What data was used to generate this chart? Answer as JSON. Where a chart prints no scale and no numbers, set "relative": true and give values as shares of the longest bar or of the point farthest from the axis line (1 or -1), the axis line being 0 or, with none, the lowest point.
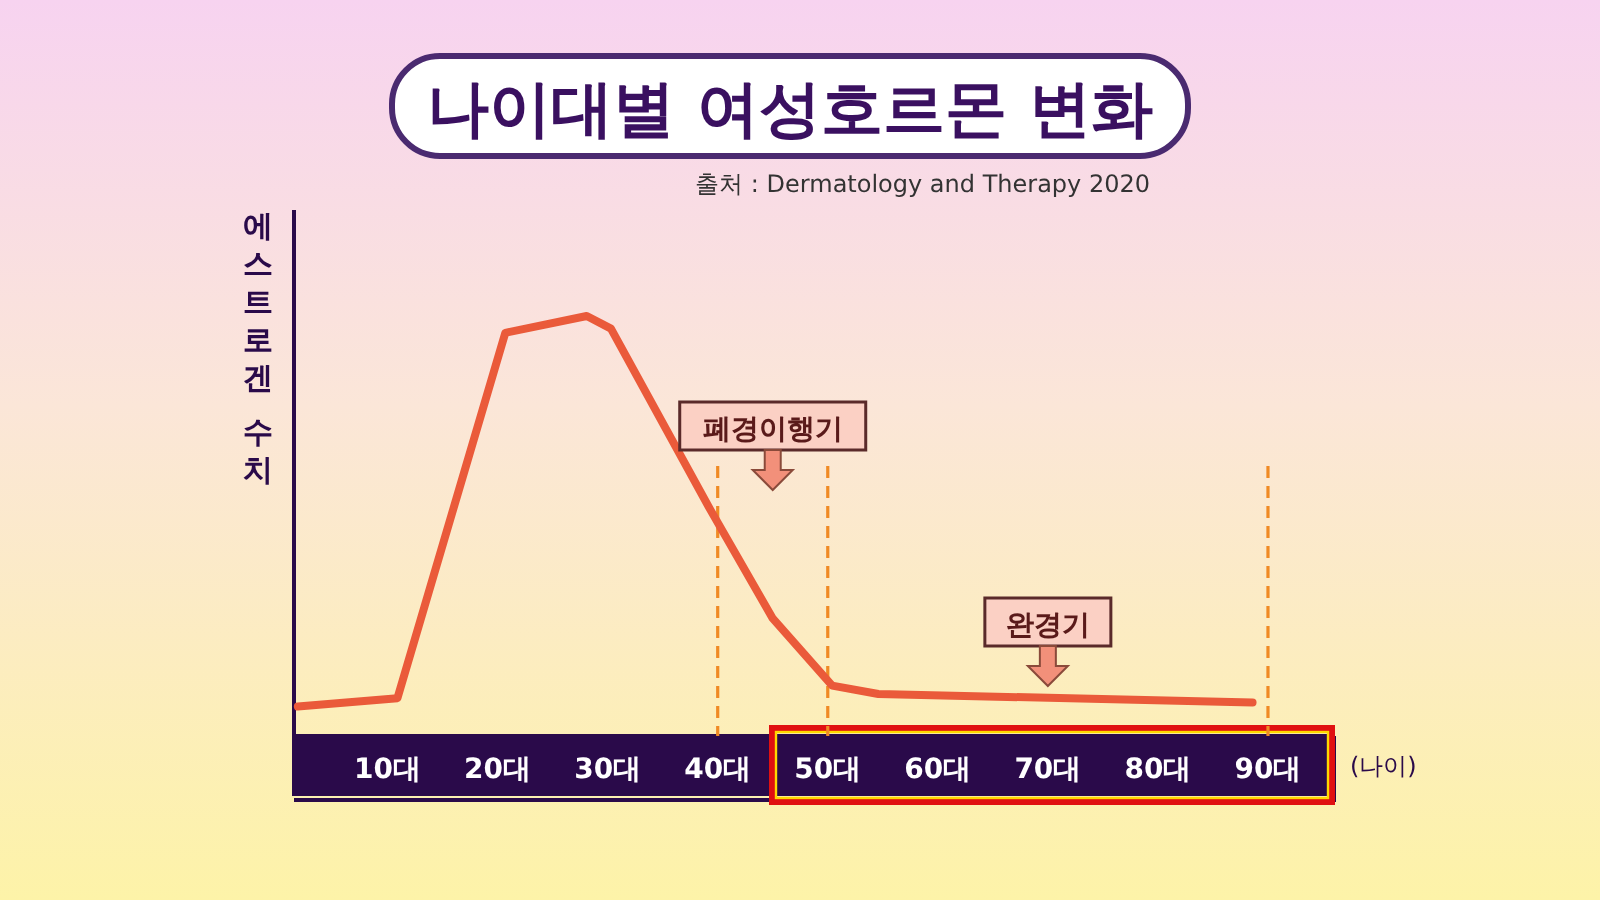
{
  "chart_data": {
    "type": "line",
    "title": "나이대별 여성호르몬 변화",
    "ylabel": "에스트로겐 수치",
    "xlabel": "(나이)",
    "relative": true,
    "annotations": [
      "출처 : Dermatology and Therapy 2020",
      "폐경이행기",
      "완경기"
    ],
    "xlim": [
      1.5,
      96
    ],
    "xticks": [
      {
        "value": 10,
        "label": "10대"
      },
      {
        "value": 20,
        "label": "20대"
      },
      {
        "value": 30,
        "label": "30대"
      },
      {
        "value": 40,
        "label": "40대"
      },
      {
        "value": 50,
        "label": "50대"
      },
      {
        "value": 60,
        "label": "60대"
      },
      {
        "value": 70,
        "label": "70대"
      },
      {
        "value": 80,
        "label": "80대"
      },
      {
        "value": 90,
        "label": "90대"
      }
    ],
    "x": [
      1.85,
      10.9,
      20.7,
      28.1,
      30.3,
      39.3,
      45.0,
      50.4,
      54.6,
      88.6
    ],
    "series": [
      {
        "color": "#ea5a3a",
        "values": [
          0.07,
          0.09,
          0.96,
          1,
          0.97,
          0.54,
          0.28,
          0.12,
          0.1,
          0.08
        ]
      }
    ],
    "ref_lines": [
      {
        "axis": "x",
        "value": 40,
        "color": "#f08a24",
        "line_style": "dashed"
      },
      {
        "axis": "x",
        "value": 50,
        "color": "#f08a24",
        "line_style": "dashed"
      },
      {
        "axis": "x",
        "value": 90,
        "color": "#f08a24",
        "line_style": "dashed"
      }
    ],
    "line_style": "solid"
  }
}
